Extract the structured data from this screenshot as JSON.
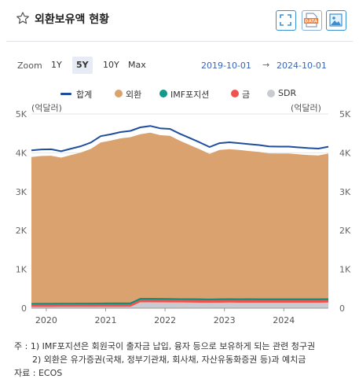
{
  "header": {
    "title": "외환보유액 현황",
    "star_icon": "star-outline-icon",
    "buttons": [
      {
        "icon": "fullscreen-icon"
      },
      {
        "icon": "data-download-icon",
        "text": "DATA"
      },
      {
        "icon": "image-download-icon"
      }
    ]
  },
  "zoom": {
    "label": "Zoom",
    "options": [
      "1Y",
      "5Y",
      "10Y",
      "Max"
    ],
    "selected": "5Y"
  },
  "range": {
    "from": "2019-10-01",
    "separator": "→",
    "to": "2024-10-01"
  },
  "legend": [
    {
      "label": "합계",
      "color": "#1f4e9c",
      "type": "line"
    },
    {
      "label": "외환",
      "color": "#d9a26f",
      "type": "dot"
    },
    {
      "label": "IMF포지션",
      "color": "#11998a",
      "type": "dot"
    },
    {
      "label": "금",
      "color": "#ef5350",
      "type": "dot"
    },
    {
      "label": "SDR",
      "color": "#c8cbd0",
      "type": "dot"
    }
  ],
  "units": {
    "left": "(억달러)",
    "right": "(억달러)"
  },
  "chart_data": {
    "type": "area",
    "x_start": "2019-10",
    "x_end": "2024-10",
    "x_tick_labels": [
      "2020",
      "2021",
      "2022",
      "2023",
      "2024"
    ],
    "y_tick_labels": [
      "0",
      "1K",
      "2K",
      "3K",
      "4K",
      "5K"
    ],
    "ylim": [
      0,
      5000
    ],
    "grid": true,
    "legend_position": "top",
    "months": [
      "2019-10",
      "2019-12",
      "2020-02",
      "2020-04",
      "2020-06",
      "2020-08",
      "2020-10",
      "2020-12",
      "2021-02",
      "2021-04",
      "2021-06",
      "2021-08",
      "2021-10",
      "2021-12",
      "2022-02",
      "2022-04",
      "2022-06",
      "2022-08",
      "2022-10",
      "2022-12",
      "2023-02",
      "2023-04",
      "2023-06",
      "2023-08",
      "2023-10",
      "2023-12",
      "2024-02",
      "2024-04",
      "2024-06",
      "2024-08",
      "2024-10"
    ],
    "series": [
      {
        "name": "합계",
        "type": "line",
        "color": "#1f4e9c",
        "values": [
          4063,
          4088,
          4092,
          4040,
          4108,
          4170,
          4265,
          4430,
          4476,
          4534,
          4565,
          4655,
          4693,
          4632,
          4615,
          4490,
          4380,
          4270,
          4150,
          4250,
          4272,
          4250,
          4222,
          4201,
          4164,
          4160,
          4160,
          4140,
          4122,
          4110,
          4158
        ]
      },
      {
        "name": "외환",
        "color": "#d9a26f",
        "values": [
          3776,
          3800,
          3806,
          3754,
          3822,
          3885,
          3978,
          4140,
          4185,
          4242,
          4272,
          4232,
          4270,
          4210,
          4196,
          4072,
          3965,
          3857,
          3740,
          3840,
          3860,
          3838,
          3811,
          3790,
          3752,
          3748,
          3748,
          3728,
          3710,
          3698,
          3744
        ]
      },
      {
        "name": "IMF포지션",
        "color": "#11998a",
        "values": [
          36,
          38,
          38,
          40,
          40,
          41,
          42,
          45,
          47,
          48,
          48,
          47,
          48,
          47,
          46,
          45,
          44,
          44,
          43,
          44,
          45,
          45,
          46,
          45,
          45,
          45,
          45,
          45,
          45,
          45,
          46
        ]
      },
      {
        "name": "금",
        "color": "#ef5350",
        "values": [
          48,
          48,
          48,
          48,
          48,
          48,
          48,
          48,
          48,
          48,
          48,
          48,
          48,
          48,
          48,
          48,
          48,
          48,
          48,
          48,
          48,
          48,
          48,
          48,
          48,
          48,
          48,
          48,
          48,
          48,
          48
        ]
      },
      {
        "name": "SDR",
        "color": "#c8cbd0",
        "values": [
          33,
          33,
          33,
          34,
          34,
          34,
          34,
          34,
          34,
          34,
          34,
          151,
          152,
          150,
          148,
          146,
          144,
          142,
          140,
          142,
          143,
          142,
          142,
          141,
          141,
          141,
          141,
          141,
          141,
          141,
          143
        ]
      }
    ]
  },
  "notes": [
    "주 : 1) IMF포지션은 회원국이 출자금 납입, 융자 등으로 보유하게 되는 관련 청구권",
    "2) 외환은 유가증권(국채, 정부기관채, 회사채, 자산유동화증권 등)과 예치금",
    "자료 : ECOS"
  ]
}
